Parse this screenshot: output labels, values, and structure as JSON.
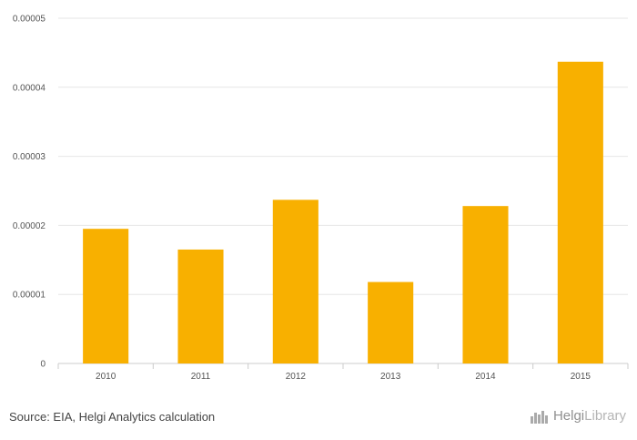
{
  "chart_data": {
    "type": "bar",
    "categories": [
      "2010",
      "2011",
      "2012",
      "2013",
      "2014",
      "2015"
    ],
    "values": [
      1.95e-05,
      1.65e-05,
      2.37e-05,
      1.18e-05,
      2.28e-05,
      4.37e-05
    ],
    "y_ticks": [
      "0",
      "0.00001",
      "0.00002",
      "0.00003",
      "0.00004",
      "0.00005"
    ],
    "ylim": [
      0,
      5e-05
    ],
    "grid": true,
    "bar_color": "#f8b000",
    "title": "",
    "xlabel": "",
    "ylabel": ""
  },
  "footer": {
    "source": "Source: EIA, Helgi Analytics calculation",
    "brand_part1": "Helgi",
    "brand_part2": "Library"
  },
  "colors": {
    "grid": "#e6e6e6",
    "axis": "#cccccc",
    "brand": "#9a9a9a"
  }
}
